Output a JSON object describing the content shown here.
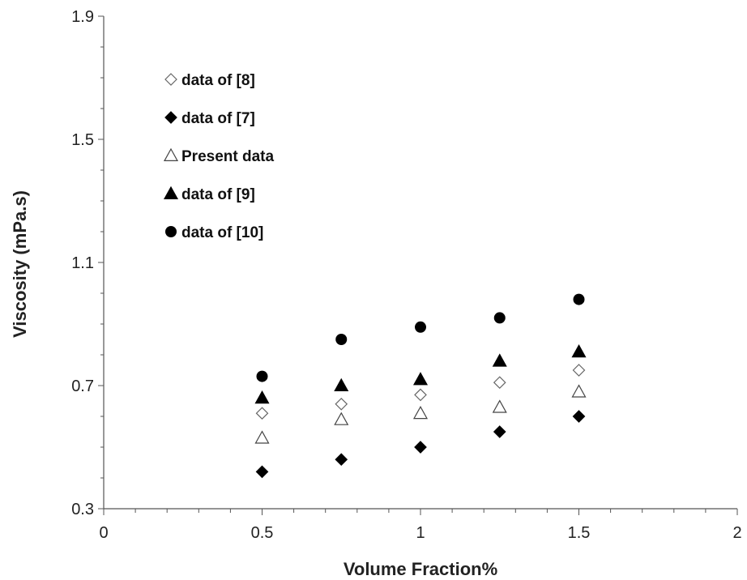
{
  "chart_data": {
    "type": "scatter",
    "title": "",
    "xlabel": "Volume Fraction%",
    "ylabel": "Viscosity (mPa.s)",
    "xlim": [
      0,
      2
    ],
    "ylim": [
      0.3,
      1.9
    ],
    "xticks": [
      "0",
      "0.5",
      "1",
      "1.5",
      "2"
    ],
    "xtick_values": [
      0,
      0.5,
      1,
      1.5,
      2
    ],
    "yticks": [
      "0.3",
      "0.7",
      "1.1",
      "1.5",
      "1.9"
    ],
    "ytick_values": [
      0.3,
      0.7,
      1.1,
      1.5,
      1.9
    ],
    "grid": false,
    "legend_position": "top-left",
    "series": [
      {
        "name": "data of [8]",
        "marker": "diamond-open",
        "x": [
          0.5,
          0.75,
          1,
          1.25,
          1.5
        ],
        "y": [
          0.61,
          0.64,
          0.67,
          0.71,
          0.75
        ]
      },
      {
        "name": "data of [7]",
        "marker": "diamond-filled",
        "x": [
          0.5,
          0.75,
          1,
          1.25,
          1.5
        ],
        "y": [
          0.42,
          0.46,
          0.5,
          0.55,
          0.6
        ]
      },
      {
        "name": "Present data",
        "marker": "triangle-open",
        "x": [
          0.5,
          0.75,
          1,
          1.25,
          1.5
        ],
        "y": [
          0.53,
          0.59,
          0.61,
          0.63,
          0.68
        ]
      },
      {
        "name": "data of [9]",
        "marker": "triangle-filled",
        "x": [
          0.5,
          0.75,
          1,
          1.25,
          1.5
        ],
        "y": [
          0.66,
          0.7,
          0.72,
          0.78,
          0.81
        ]
      },
      {
        "name": "data of [10]",
        "marker": "circle-filled",
        "x": [
          0.5,
          0.75,
          1,
          1.25,
          1.5
        ],
        "y": [
          0.73,
          0.85,
          0.89,
          0.92,
          0.98
        ]
      }
    ]
  }
}
